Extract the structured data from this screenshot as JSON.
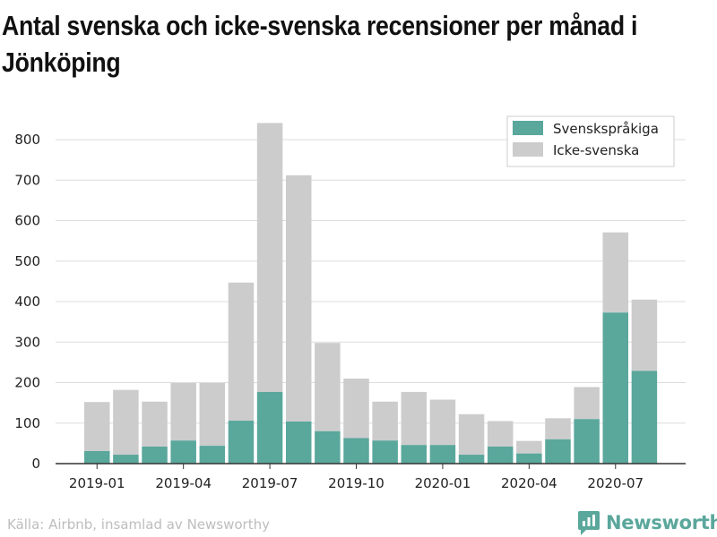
{
  "title": "Antal svenska och icke-svenska recensioner per månad i Jönköping",
  "footer": {
    "source": "Källa: Airbnb, insamlad av Newsworthy",
    "brand": "Newsworthy"
  },
  "colors": {
    "swedish": "#5aa79c",
    "non_swedish": "#cccccc",
    "grid": "#dddddd",
    "axis": "#333333",
    "text": "#222222"
  },
  "icons": [
    "newsworthy-logo-icon"
  ],
  "chart_data": {
    "type": "bar",
    "stacked": true,
    "categories": [
      "2019-01",
      "2019-02",
      "2019-03",
      "2019-04",
      "2019-05",
      "2019-06",
      "2019-07",
      "2019-08",
      "2019-09",
      "2019-10",
      "2019-11",
      "2019-12",
      "2020-01",
      "2020-02",
      "2020-03",
      "2020-04",
      "2020-05",
      "2020-06",
      "2020-07",
      "2020-08"
    ],
    "series": [
      {
        "name": "Svenskspråkiga",
        "color": "#5aa79c",
        "values": [
          31,
          22,
          42,
          57,
          44,
          106,
          177,
          104,
          80,
          63,
          57,
          46,
          46,
          22,
          42,
          25,
          60,
          110,
          373,
          229
        ]
      },
      {
        "name": "Icke-svenska",
        "color": "#cccccc",
        "values": [
          121,
          160,
          111,
          142,
          155,
          341,
          664,
          608,
          218,
          147,
          96,
          131,
          112,
          100,
          63,
          31,
          52,
          79,
          198,
          176
        ]
      }
    ],
    "x_tick_labels": [
      "2019-01",
      "2019-04",
      "2019-07",
      "2019-10",
      "2020-01",
      "2020-04",
      "2020-07"
    ],
    "y_ticks": [
      0,
      100,
      200,
      300,
      400,
      500,
      600,
      700,
      800
    ],
    "ylim": [
      0,
      800
    ],
    "grid": true,
    "legend_position": "top-right",
    "xlabel": "",
    "ylabel": ""
  }
}
